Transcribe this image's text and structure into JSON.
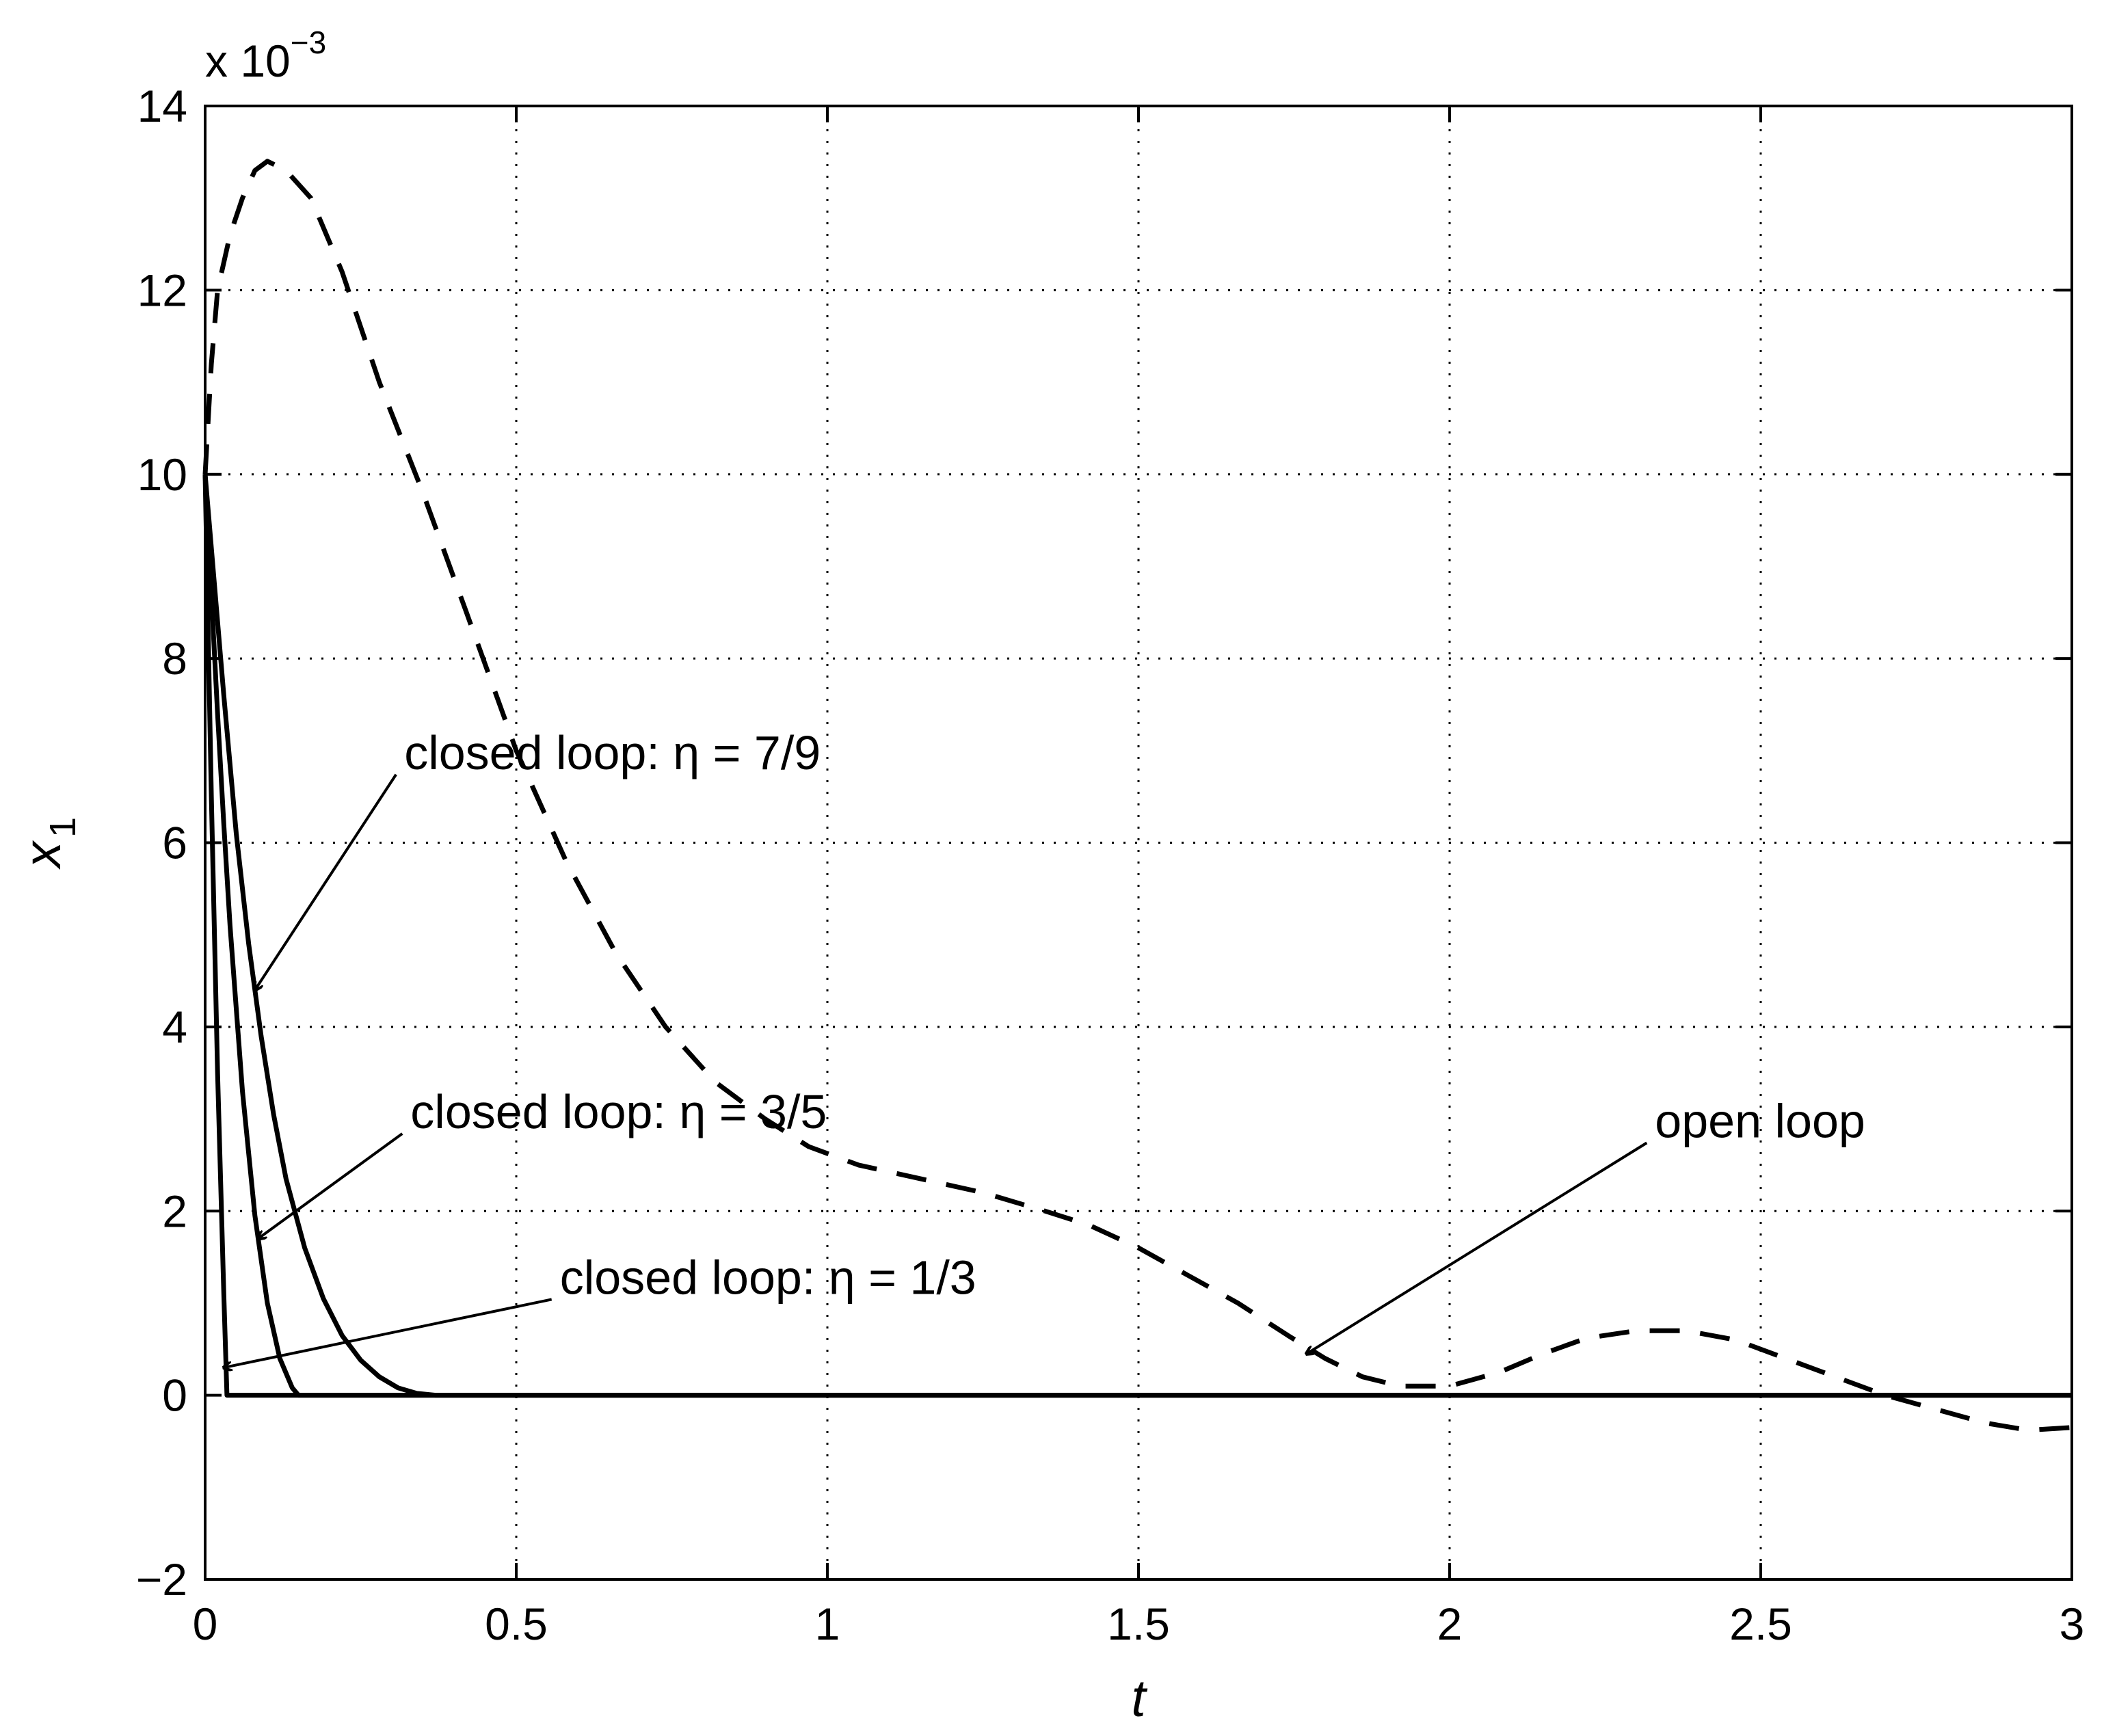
{
  "chart_data": {
    "type": "line",
    "title": "",
    "xlabel": "t",
    "ylabel": {
      "base": "x",
      "subscript": "1"
    },
    "y_multiplier": {
      "text": "x 10",
      "exponent": "−3"
    },
    "xlim": [
      0,
      3
    ],
    "ylim": [
      -2,
      14
    ],
    "y_units_scale": 0.001,
    "grid": true,
    "legend": "none",
    "x_ticks": [
      0,
      0.5,
      1,
      1.5,
      2,
      2.5,
      3
    ],
    "x_tick_labels": [
      "0",
      "0.5",
      "1",
      "1.5",
      "2",
      "2.5",
      "3"
    ],
    "y_ticks": [
      -2,
      0,
      2,
      4,
      6,
      8,
      10,
      12,
      14
    ],
    "y_tick_labels": [
      "−2",
      "0",
      "2",
      "4",
      "6",
      "8",
      "10",
      "12",
      "14"
    ],
    "series": [
      {
        "style": "dashed",
        "color": "#000000",
        "x": [
          0,
          0.01,
          0.02,
          0.04,
          0.06,
          0.08,
          0.1,
          0.13,
          0.17,
          0.22,
          0.28,
          0.35,
          0.42,
          0.5,
          0.58,
          0.66,
          0.74,
          0.82,
          0.9,
          0.97,
          1.05,
          1.15,
          1.25,
          1.35,
          1.42,
          1.5,
          1.58,
          1.66,
          1.74,
          1.8,
          1.86,
          1.92,
          2.0,
          2.08,
          2.15,
          2.22,
          2.3,
          2.38,
          2.46,
          2.54,
          2.62,
          2.7,
          2.78,
          2.86,
          2.93,
          3.0
        ],
        "y": [
          10.0,
          11.2,
          12.0,
          12.6,
          13.0,
          13.3,
          13.4,
          13.3,
          13.0,
          12.2,
          11.0,
          9.8,
          8.5,
          7.0,
          5.8,
          4.8,
          4.0,
          3.4,
          3.0,
          2.7,
          2.5,
          2.35,
          2.2,
          2.0,
          1.85,
          1.6,
          1.3,
          1.0,
          0.65,
          0.4,
          0.2,
          0.1,
          0.1,
          0.25,
          0.45,
          0.62,
          0.7,
          0.7,
          0.6,
          0.4,
          0.2,
          0.0,
          -0.15,
          -0.3,
          -0.38,
          -0.35
        ]
      },
      {
        "style": "solid",
        "color": "#000000",
        "x": [
          0,
          0.01,
          0.02,
          0.03,
          0.05,
          0.07,
          0.09,
          0.11,
          0.13,
          0.16,
          0.19,
          0.22,
          0.25,
          0.28,
          0.31,
          0.34,
          0.37,
          3.0
        ],
        "y": [
          10.0,
          9.2,
          8.4,
          7.6,
          6.1,
          4.9,
          3.9,
          3.05,
          2.35,
          1.6,
          1.05,
          0.65,
          0.38,
          0.2,
          0.08,
          0.02,
          0.0,
          0.0
        ]
      },
      {
        "style": "solid",
        "color": "#000000",
        "x": [
          0,
          0.01,
          0.02,
          0.03,
          0.04,
          0.06,
          0.08,
          0.1,
          0.12,
          0.14,
          0.15,
          3.0
        ],
        "y": [
          10.0,
          8.7,
          7.4,
          6.2,
          5.1,
          3.3,
          1.95,
          1.0,
          0.4,
          0.08,
          0.0,
          0.0
        ]
      },
      {
        "style": "solid",
        "color": "#000000",
        "x": [
          0,
          0.01,
          0.02,
          0.03,
          0.035,
          3.0
        ],
        "y": [
          10.0,
          6.5,
          3.5,
          1.1,
          0.0,
          0.0
        ]
      }
    ],
    "annotations": [
      {
        "text": "closed loop: η = 7/9",
        "anchor_t": 0.32,
        "anchor_y": 6.8,
        "arrow_to_t": 0.08,
        "arrow_to_y": 4.4
      },
      {
        "text": "closed loop: η = 3/5",
        "anchor_t": 0.33,
        "anchor_y": 2.9,
        "arrow_to_t": 0.085,
        "arrow_to_y": 1.7
      },
      {
        "text": "closed loop: η = 1/3",
        "anchor_t": 0.57,
        "anchor_y": 1.1,
        "arrow_to_t": 0.03,
        "arrow_to_y": 0.3
      },
      {
        "text": "open loop",
        "anchor_t": 2.33,
        "anchor_y": 2.8,
        "arrow_to_t": 1.77,
        "arrow_to_y": 0.45
      }
    ]
  }
}
